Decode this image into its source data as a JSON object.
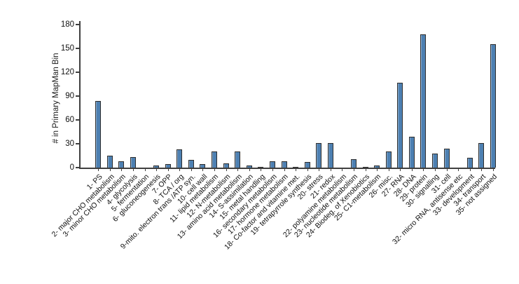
{
  "figure": {
    "background_color": "#ffffff",
    "axis_color": "#3f3f3f",
    "text_color": "#111111"
  },
  "chart_data": {
    "type": "bar",
    "title": "",
    "xlabel": "",
    "ylabel": "# in Primary MapMan Bin",
    "ylim": [
      0,
      180
    ],
    "yticks": [
      0,
      30,
      60,
      90,
      120,
      150,
      180
    ],
    "grid": false,
    "legend_position": "none",
    "bar_color": "#4d80b2",
    "bar_border_color": "#2e2e2e",
    "categories": [
      "1- PS",
      "2- major CHO metabolism",
      "3- minor CHO metabolism",
      "4- glycolysis",
      "5- fermentation",
      "6- gluconeogenesis",
      "7- OPP",
      "8- TCA / org",
      "9-mito. electron trans /ATP syn.",
      "10- cell wall",
      "11- lipid metabolism",
      "12- N-metabolism",
      "13- amino acid metabolism",
      "14- S-assimilation",
      "15- metal handling",
      "16- secondary metabolism",
      "17- hormone metabolism",
      "18- Co-factor and vitamine met.",
      "19- tetrapyrrole synthesis",
      "20- stress",
      "21- redox",
      "22- polyamine metabolism",
      "23- nucleotide metabolism",
      "24- Biodeg. of Xenobiotics",
      "25- C1-metabolism",
      "26- misc.",
      "27- RNA",
      "28- DNA",
      "29- protein",
      "30- signalling",
      "31- cell",
      "32- micro RNA, antisense etc",
      "33- development",
      "34- transport",
      "35- not assigned"
    ],
    "values": [
      84,
      15,
      8,
      13,
      0,
      3,
      4,
      23,
      10,
      4,
      20,
      5,
      20,
      3,
      1,
      8,
      8,
      1,
      7,
      31,
      31,
      0,
      11,
      1,
      3,
      20,
      107,
      39,
      168,
      18,
      24,
      0,
      12,
      31,
      155
    ]
  }
}
